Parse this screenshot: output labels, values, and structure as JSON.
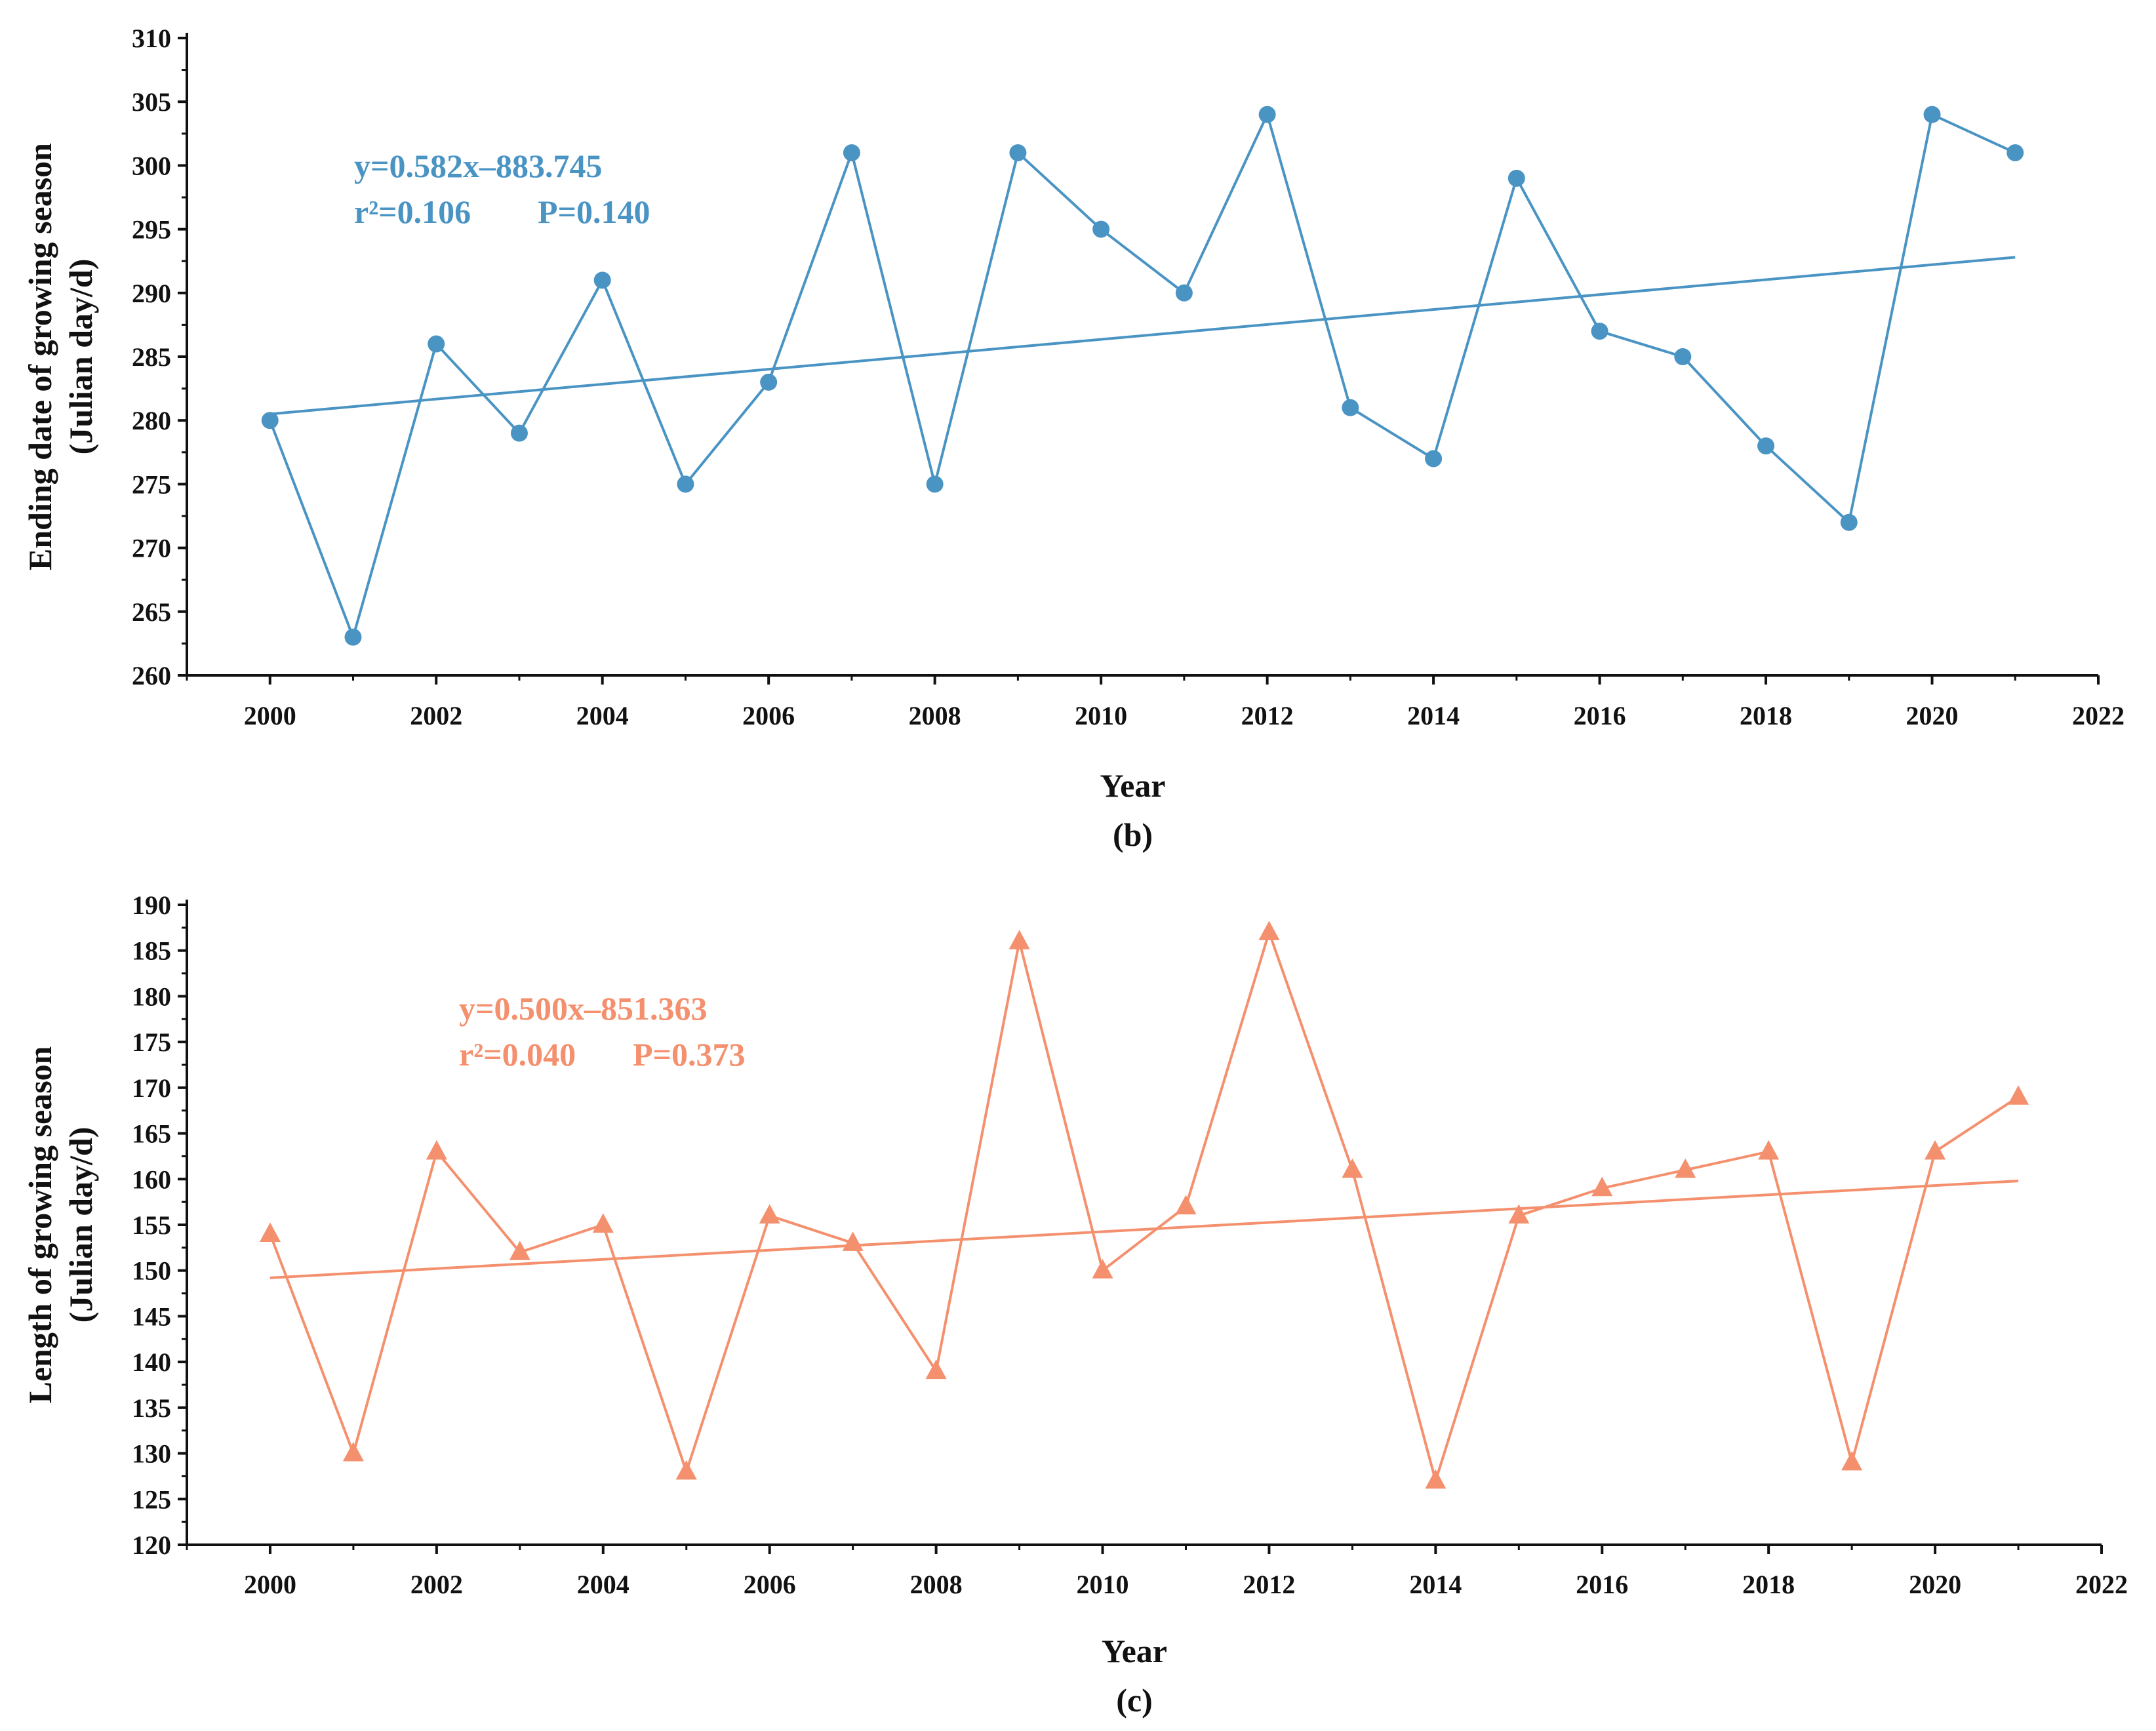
{
  "chart_data": [
    {
      "type": "line",
      "panel_label": "(b)",
      "color": "#4a94c4",
      "marker": "circle",
      "ylabel_line1": "Ending date of growing season",
      "ylabel_line2": "(Julian day/d)",
      "xlabel": "Year",
      "xlim": [
        1999,
        2022
      ],
      "ylim": [
        260,
        310
      ],
      "xticks": [
        2000,
        2002,
        2004,
        2006,
        2008,
        2010,
        2012,
        2014,
        2016,
        2018,
        2020,
        2022
      ],
      "yticks": [
        260,
        265,
        270,
        275,
        280,
        285,
        290,
        295,
        300,
        305,
        310
      ],
      "x": [
        2000,
        2001,
        2002,
        2003,
        2004,
        2005,
        2006,
        2007,
        2008,
        2009,
        2010,
        2011,
        2012,
        2013,
        2014,
        2015,
        2016,
        2017,
        2018,
        2019,
        2020,
        2021
      ],
      "values": [
        280,
        263,
        286,
        279,
        291,
        275,
        283,
        301,
        275,
        301,
        295,
        290,
        304,
        281,
        277,
        299,
        287,
        285,
        278,
        272,
        304,
        301
      ],
      "trend": {
        "x_start": 2000,
        "x_end": 2021,
        "y_start": 280.5,
        "y_end": 292.8
      },
      "equation": "y=0.582x–883.745",
      "r2": "r²=0.106",
      "p_value": "P=0.140"
    },
    {
      "type": "line",
      "panel_label": "(c)",
      "color": "#f4906e",
      "marker": "triangle",
      "ylabel_line1": "Length of growing season",
      "ylabel_line2": "(Julian day/d)",
      "xlabel": "Year",
      "xlim": [
        1999,
        2022
      ],
      "ylim": [
        120,
        190
      ],
      "xticks": [
        2000,
        2002,
        2004,
        2006,
        2008,
        2010,
        2012,
        2014,
        2016,
        2018,
        2020,
        2022
      ],
      "yticks": [
        120,
        125,
        130,
        135,
        140,
        145,
        150,
        155,
        160,
        165,
        170,
        175,
        180,
        185,
        190
      ],
      "x": [
        2000,
        2001,
        2002,
        2003,
        2004,
        2005,
        2006,
        2007,
        2008,
        2009,
        2010,
        2011,
        2012,
        2013,
        2014,
        2015,
        2016,
        2017,
        2018,
        2019,
        2020,
        2021
      ],
      "values": [
        154,
        130,
        163,
        152,
        155,
        128,
        156,
        153,
        139,
        186,
        150,
        157,
        187,
        161,
        127,
        156,
        159,
        161,
        163,
        129,
        163,
        169
      ],
      "trend": {
        "x_start": 2000,
        "x_end": 2021,
        "y_start": 149.2,
        "y_end": 159.8
      },
      "equation": "y=0.500x–851.363",
      "r2": "r²=0.040",
      "p_value": "P=0.373"
    }
  ]
}
